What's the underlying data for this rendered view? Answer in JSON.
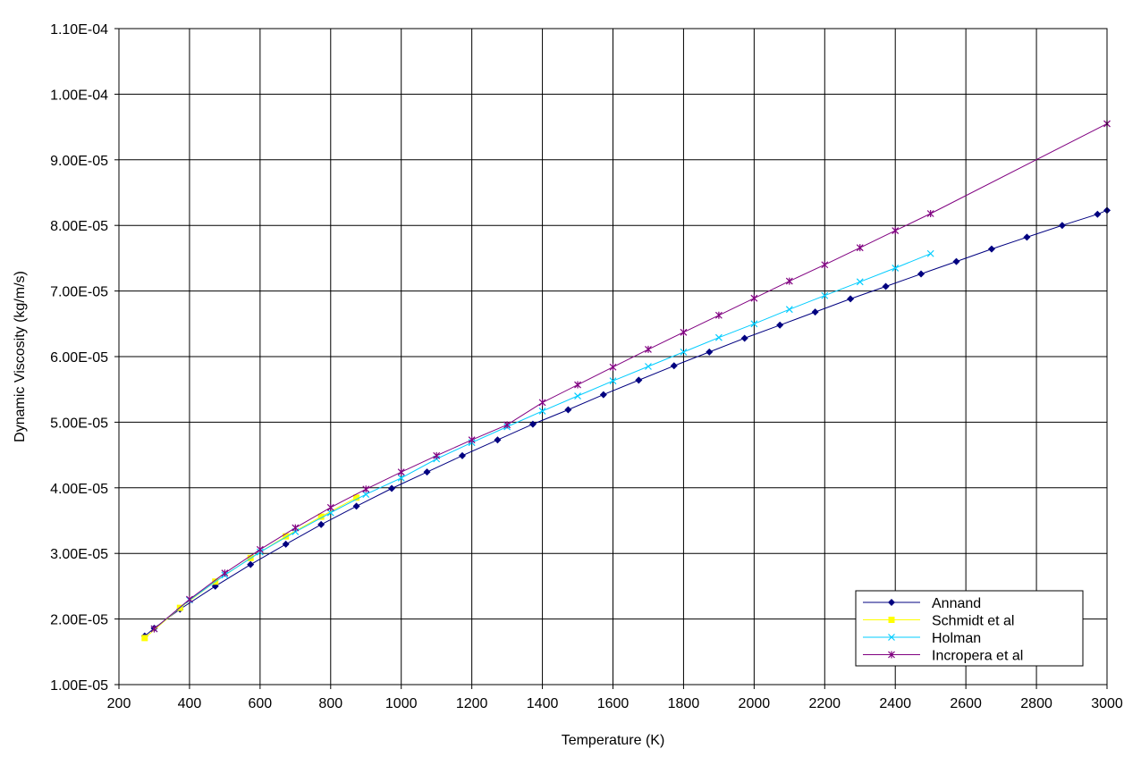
{
  "chart_data": {
    "type": "line",
    "xlabel": "Temperature (K)",
    "ylabel": "Dynamic Viscosity (kg/m/s)",
    "xlim": [
      200,
      3000
    ],
    "ylim": [
      1e-05,
      0.00011
    ],
    "x_ticks": [
      "200",
      "400",
      "600",
      "800",
      "1000",
      "1200",
      "1400",
      "1600",
      "1800",
      "2000",
      "2200",
      "2400",
      "2600",
      "2800",
      "3000"
    ],
    "y_ticks": [
      "1.00E-05",
      "2.00E-05",
      "3.00E-05",
      "4.00E-05",
      "5.00E-05",
      "6.00E-05",
      "7.00E-05",
      "8.00E-05",
      "9.00E-05",
      "1.00E-04",
      "1.10E-04"
    ],
    "grid": true,
    "legend": "bottom-right",
    "series": [
      {
        "name": "Annand",
        "color": "#000080",
        "marker": "diamond",
        "points": [
          [
            273,
            1.74e-05
          ],
          [
            300,
            1.86e-05
          ],
          [
            373,
            2.15e-05
          ],
          [
            473,
            2.5e-05
          ],
          [
            573,
            2.83e-05
          ],
          [
            673,
            3.14e-05
          ],
          [
            773,
            3.44e-05
          ],
          [
            873,
            3.72e-05
          ],
          [
            973,
            3.99e-05
          ],
          [
            1073,
            4.24e-05
          ],
          [
            1173,
            4.49e-05
          ],
          [
            1273,
            4.73e-05
          ],
          [
            1373,
            4.97e-05
          ],
          [
            1473,
            5.19e-05
          ],
          [
            1573,
            5.42e-05
          ],
          [
            1673,
            5.64e-05
          ],
          [
            1773,
            5.86e-05
          ],
          [
            1873,
            6.07e-05
          ],
          [
            1973,
            6.28e-05
          ],
          [
            2073,
            6.48e-05
          ],
          [
            2173,
            6.68e-05
          ],
          [
            2273,
            6.88e-05
          ],
          [
            2373,
            7.07e-05
          ],
          [
            2473,
            7.26e-05
          ],
          [
            2573,
            7.45e-05
          ],
          [
            2673,
            7.64e-05
          ],
          [
            2773,
            7.82e-05
          ],
          [
            2873,
            8e-05
          ],
          [
            2973,
            8.17e-05
          ],
          [
            3000,
            8.23e-05
          ]
        ]
      },
      {
        "name": "Schmidt et al",
        "color": "#ffff00",
        "marker": "square",
        "points": [
          [
            273,
            1.71e-05
          ],
          [
            373,
            2.17e-05
          ],
          [
            473,
            2.57e-05
          ],
          [
            573,
            2.93e-05
          ],
          [
            673,
            3.26e-05
          ],
          [
            773,
            3.56e-05
          ],
          [
            873,
            3.85e-05
          ]
        ]
      },
      {
        "name": "Holman",
        "color": "#00ccff",
        "marker": "cross",
        "points": [
          [
            300,
            1.85e-05
          ],
          [
            400,
            2.29e-05
          ],
          [
            500,
            2.67e-05
          ],
          [
            600,
            3.02e-05
          ],
          [
            700,
            3.33e-05
          ],
          [
            800,
            3.62e-05
          ],
          [
            900,
            3.9e-05
          ],
          [
            1000,
            4.15e-05
          ],
          [
            1100,
            4.44e-05
          ],
          [
            1200,
            4.69e-05
          ],
          [
            1300,
            4.93e-05
          ],
          [
            1400,
            5.17e-05
          ],
          [
            1500,
            5.4e-05
          ],
          [
            1600,
            5.63e-05
          ],
          [
            1700,
            5.85e-05
          ],
          [
            1800,
            6.07e-05
          ],
          [
            1900,
            6.29e-05
          ],
          [
            2000,
            6.5e-05
          ],
          [
            2100,
            6.72e-05
          ],
          [
            2200,
            6.93e-05
          ],
          [
            2300,
            7.14e-05
          ],
          [
            2400,
            7.35e-05
          ],
          [
            2500,
            7.57e-05
          ]
        ]
      },
      {
        "name": "Incropera et al",
        "color": "#800080",
        "marker": "star",
        "points": [
          [
            300,
            1.85e-05
          ],
          [
            400,
            2.3e-05
          ],
          [
            500,
            2.7e-05
          ],
          [
            600,
            3.06e-05
          ],
          [
            700,
            3.39e-05
          ],
          [
            800,
            3.7e-05
          ],
          [
            900,
            3.98e-05
          ],
          [
            1000,
            4.24e-05
          ],
          [
            1100,
            4.49e-05
          ],
          [
            1200,
            4.73e-05
          ],
          [
            1300,
            4.96e-05
          ],
          [
            1400,
            5.3e-05
          ],
          [
            1500,
            5.57e-05
          ],
          [
            1600,
            5.84e-05
          ],
          [
            1700,
            6.11e-05
          ],
          [
            1800,
            6.37e-05
          ],
          [
            1900,
            6.63e-05
          ],
          [
            2000,
            6.89e-05
          ],
          [
            2100,
            7.15e-05
          ],
          [
            2200,
            7.4e-05
          ],
          [
            2300,
            7.66e-05
          ],
          [
            2400,
            7.92e-05
          ],
          [
            2500,
            8.18e-05
          ],
          [
            3000,
            9.55e-05
          ]
        ]
      }
    ]
  }
}
